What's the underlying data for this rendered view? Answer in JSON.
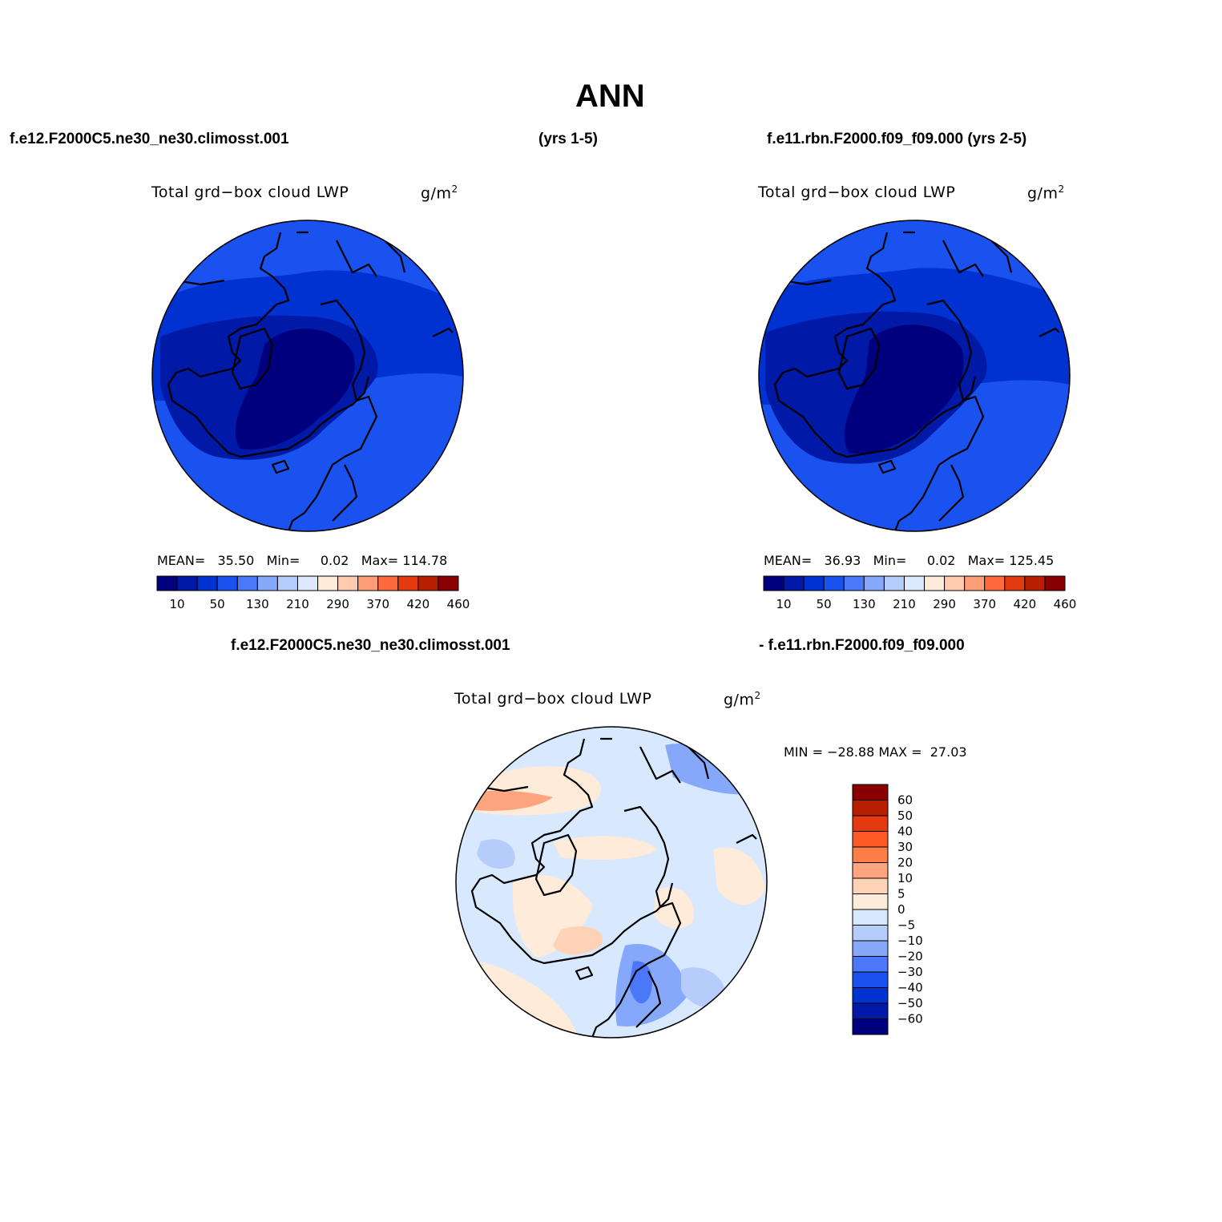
{
  "title": "ANN",
  "header": {
    "left_case": "f.e12.F2000C5.ne30_ne30.climosst.001",
    "left_years": "(yrs 1-5)",
    "right_case": "f.e11.rbn.F2000.f09_f09.000 (yrs 2-5)"
  },
  "panels": [
    {
      "label": "Total grd−box cloud LWP",
      "units_base": "g/m",
      "units_sup": "2",
      "mean_label": "MEAN=",
      "mean": "35.50",
      "min_label": "Min=",
      "min": "0.02",
      "max_label": "Max=",
      "max": "114.78",
      "colorbar_ticks": [
        "10",
        "50",
        "130",
        "210",
        "290",
        "370",
        "420",
        "460"
      ]
    },
    {
      "label": "Total grd−box cloud LWP",
      "units_base": "g/m",
      "units_sup": "2",
      "mean_label": "MEAN=",
      "mean": "36.93",
      "min_label": "Min=",
      "min": "0.02",
      "max_label": "Max=",
      "max": "125.45",
      "colorbar_ticks": [
        "10",
        "50",
        "130",
        "210",
        "290",
        "370",
        "420",
        "460"
      ]
    }
  ],
  "diff": {
    "left_title": "f.e12.F2000C5.ne30_ne30.climosst.001",
    "right_title": "- f.e11.rbn.F2000.f09_f09.000",
    "label": "Total grd−box cloud LWP",
    "units_base": "g/m",
    "units_sup": "2",
    "minmax": "MIN = −28.88 MAX =  27.03",
    "colorbar_ticks": [
      "60",
      "50",
      "40",
      "30",
      "20",
      "10",
      "5",
      "0",
      "−5",
      "−10",
      "−20",
      "−30",
      "−40",
      "−50",
      "−60"
    ]
  },
  "colors": {
    "abs_scale": [
      "#00007f",
      "#0019a6",
      "#0032d2",
      "#1a52f0",
      "#4a78f8",
      "#86a8fa",
      "#b6ccfa",
      "#dce9fe",
      "#feebd9",
      "#fecab0",
      "#fe9e78",
      "#fe6a3c",
      "#e33a10",
      "#b81f00",
      "#8a0000"
    ],
    "diff_scale": [
      "#8a0000",
      "#b81f00",
      "#e33a10",
      "#fe5a24",
      "#fe7e48",
      "#fea47e",
      "#fed2b6",
      "#feebd9",
      "#d8e8fe",
      "#b6ccfa",
      "#86a8fa",
      "#4a78f8",
      "#1a52f0",
      "#0032d2",
      "#0019a6",
      "#00007f"
    ]
  }
}
